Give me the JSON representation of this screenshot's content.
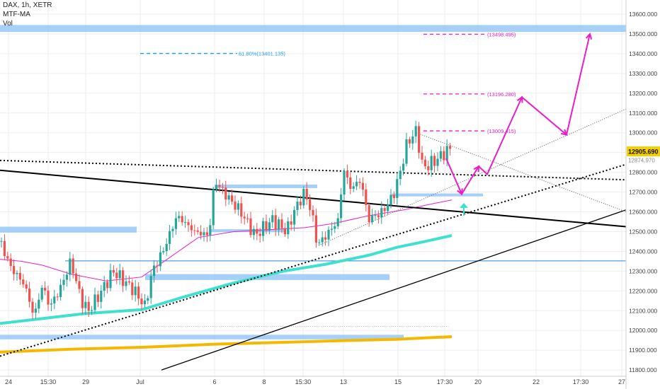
{
  "chart_data": {
    "type": "candlestick",
    "title": "DAX, 1h, XETR",
    "indicators": [
      "MTF-MA",
      "Vol"
    ],
    "xlabel": "",
    "ylabel": "",
    "ylim": [
      11780,
      13680
    ],
    "grid": true,
    "x_tick_labels": [
      "24",
      "15:30",
      "29",
      "Jul",
      "6",
      "8",
      "15:30",
      "13",
      "15",
      "17:30",
      "20",
      "22",
      "17:30",
      "27"
    ],
    "y_tick_labels": [
      "13600.000",
      "13500.000",
      "13400.000",
      "13300.000",
      "13200.000",
      "13100.000",
      "13000.000",
      "12900.000",
      "12800.000",
      "12700.000",
      "12600.000",
      "12500.000",
      "12400.000",
      "12300.000",
      "12200.000",
      "12100.000",
      "12000.000",
      "11900.000",
      "11800.000"
    ],
    "y_ticks": [
      13600,
      13500,
      13400,
      13300,
      13200,
      13100,
      13000,
      12900,
      12800,
      12700,
      12600,
      12500,
      12400,
      12300,
      12200,
      12100,
      12000,
      11900,
      11800
    ],
    "last_price": "12905.690",
    "last_price_value": 12905.69,
    "secondary_price_label": "12874.970",
    "annotations": [
      {
        "label": "61.80%(13401.135)",
        "value": 13401.135,
        "color": "#2196f3"
      },
      {
        "label": "(13498.495)",
        "value": 13498.495,
        "color": "#e91ec8"
      },
      {
        "label": "(13196.280)",
        "value": 13196.28,
        "color": "#e91ec8"
      },
      {
        "label": "(13009.415)",
        "value": 13009.415,
        "color": "#e91ec8"
      }
    ],
    "colors": {
      "up": "#26a69a",
      "down": "#ef5350",
      "ma_cyan": "#3fe0d0",
      "ma_orange": "#f5b800",
      "ma_pink": "#e91ec8",
      "zone": "#90c4f5",
      "projection": "#e91ec8",
      "price_tag": "#f5d000"
    }
  }
}
